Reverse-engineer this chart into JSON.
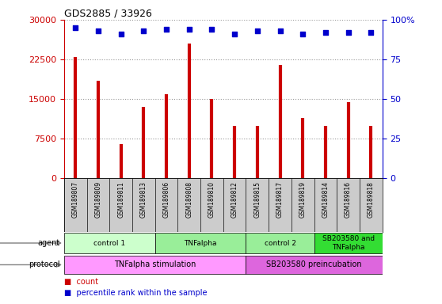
{
  "title": "GDS2885 / 33926",
  "samples": [
    "GSM189807",
    "GSM189809",
    "GSM189811",
    "GSM189813",
    "GSM189806",
    "GSM189808",
    "GSM189810",
    "GSM189812",
    "GSM189815",
    "GSM189817",
    "GSM189819",
    "GSM189814",
    "GSM189816",
    "GSM189818"
  ],
  "counts": [
    23000,
    18500,
    6500,
    13500,
    16000,
    25500,
    15000,
    10000,
    10000,
    21500,
    11500,
    10000,
    14500,
    10000
  ],
  "percentile_ranks": [
    95,
    93,
    91,
    93,
    94,
    94,
    94,
    91,
    93,
    93,
    91,
    92,
    92,
    92
  ],
  "bar_color": "#cc0000",
  "dot_color": "#0000cc",
  "ylim_left": [
    0,
    30000
  ],
  "ylim_right": [
    0,
    100
  ],
  "yticks_left": [
    0,
    7500,
    15000,
    22500,
    30000
  ],
  "yticks_right": [
    0,
    25,
    50,
    75,
    100
  ],
  "agent_groups": [
    {
      "label": "control 1",
      "start": 0,
      "end": 4,
      "color": "#ccffcc"
    },
    {
      "label": "TNFalpha",
      "start": 4,
      "end": 8,
      "color": "#99ee99"
    },
    {
      "label": "control 2",
      "start": 8,
      "end": 11,
      "color": "#99ee99"
    },
    {
      "label": "SB203580 and\nTNFalpha",
      "start": 11,
      "end": 14,
      "color": "#33dd33"
    }
  ],
  "protocol_groups": [
    {
      "label": "TNFalpha stimulation",
      "start": 0,
      "end": 8,
      "color": "#ff99ff"
    },
    {
      "label": "SB203580 preincubation",
      "start": 8,
      "end": 14,
      "color": "#dd66dd"
    }
  ],
  "grid_color": "#999999",
  "sample_bg_color": "#cccccc",
  "left_axis_color": "#cc0000",
  "right_axis_color": "#0000cc"
}
